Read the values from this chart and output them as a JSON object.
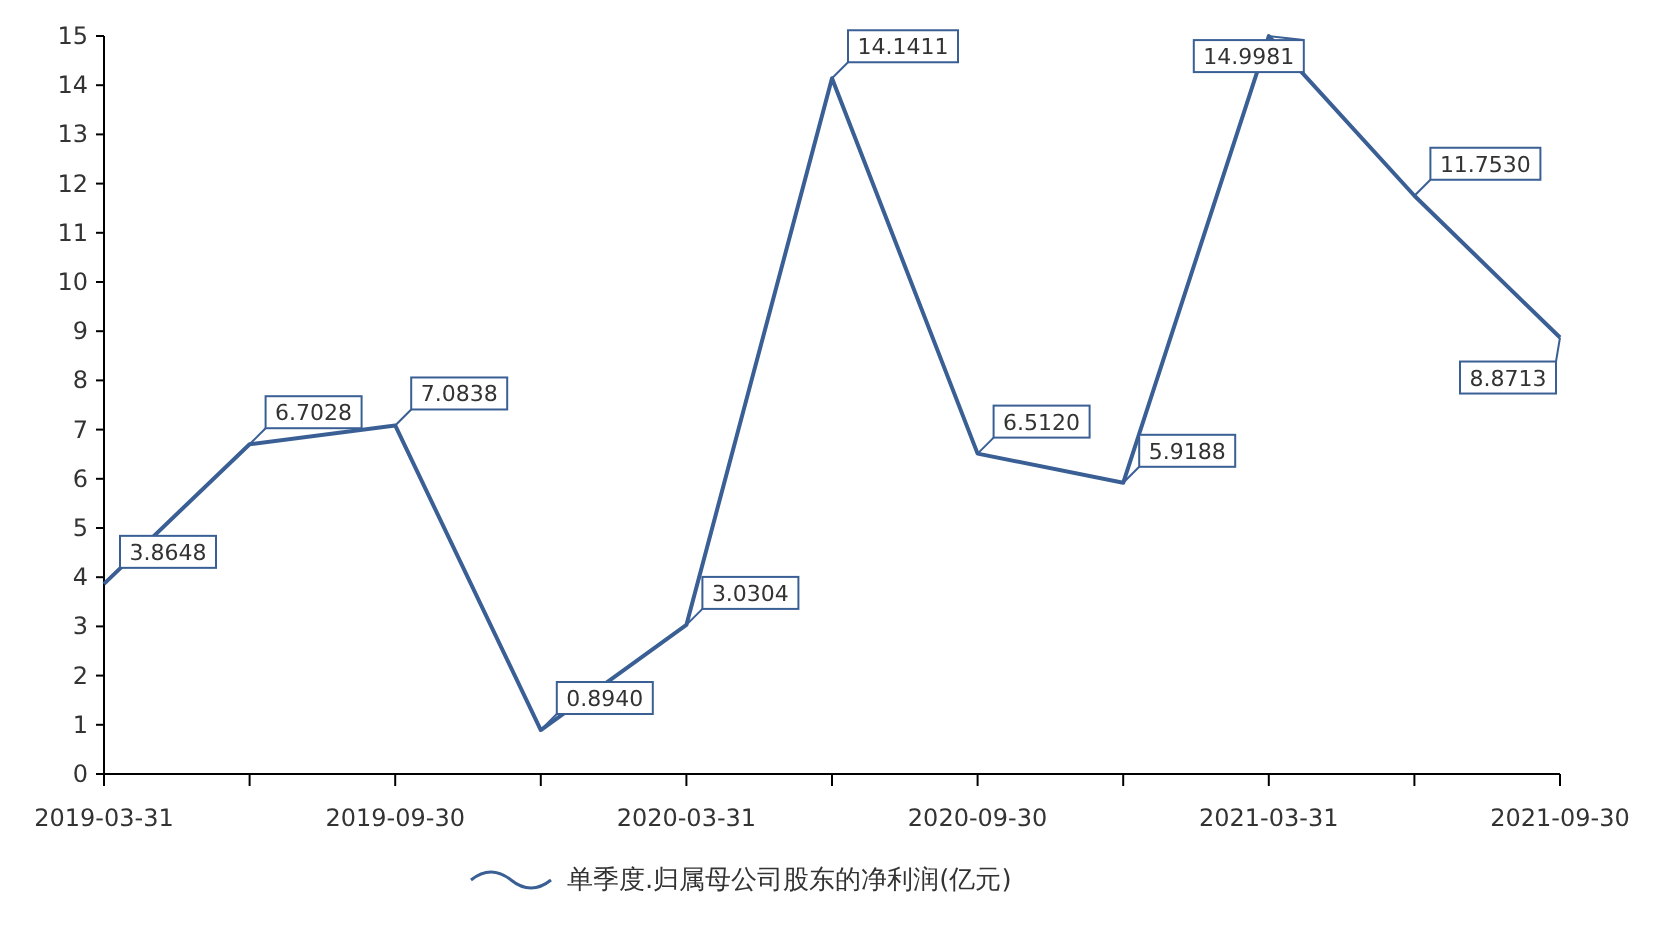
{
  "chart_data": {
    "type": "line",
    "categories": [
      "2019-03-31",
      null,
      "2019-09-30",
      null,
      "2020-03-31",
      null,
      "2020-09-30",
      null,
      "2021-03-31",
      null,
      "2021-09-30"
    ],
    "series": [
      {
        "name": "单季度.归属母公司股东的净利润(亿元)",
        "color": "#3a5f95",
        "values": [
          3.8648,
          6.7028,
          7.0838,
          0.894,
          3.0304,
          14.1411,
          6.512,
          5.9188,
          14.9981,
          11.753,
          8.8713
        ],
        "value_labels": [
          "3.8648",
          "6.7028",
          "7.0838",
          "0.8940",
          "3.0304",
          "14.1411",
          "6.5120",
          "5.9188",
          "14.9981",
          "11.7530",
          "8.8713"
        ]
      }
    ],
    "ylim": [
      0,
      15
    ],
    "yticks": [
      0,
      1,
      2,
      3,
      4,
      5,
      6,
      7,
      8,
      9,
      10,
      11,
      12,
      13,
      14,
      15
    ],
    "grid": false,
    "legend": "bottom",
    "marker": "none",
    "line_style": "solid"
  }
}
